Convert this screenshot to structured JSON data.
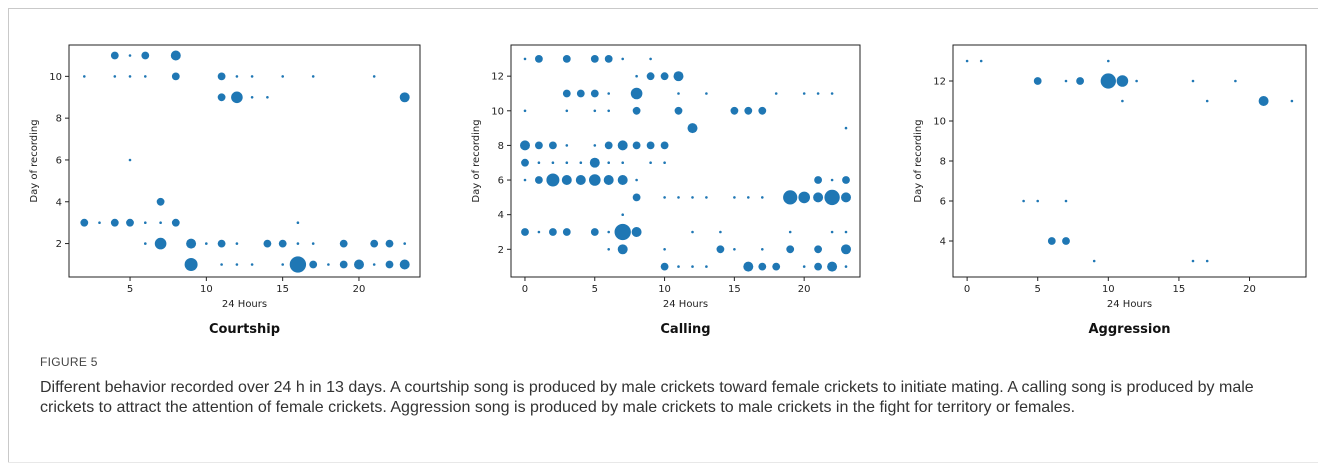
{
  "figure": {
    "label": "FIGURE 5",
    "caption": "Different behavior recorded over 24 h in 13 days. A courtship song is produced by male crickets toward female crickets to initiate mating. A calling song is produced by male crickets to attract the attention of female crickets. Aggression song is produced by male crickets to male crickets in the fight for territory or females."
  },
  "colors": {
    "marker": "#1f77b4",
    "axis": "#222222"
  },
  "chart_data": [
    {
      "type": "scatter",
      "title": "Courtship",
      "xlabel": "24 Hours",
      "ylabel": "Day of recording",
      "xlim": [
        1,
        24
      ],
      "ylim": [
        0.4,
        11.5
      ],
      "xticks": [
        5,
        10,
        15,
        20
      ],
      "yticks": [
        2,
        4,
        6,
        8,
        10
      ],
      "size_note": "marker size proportional to song count",
      "points": [
        [
          2,
          10,
          1
        ],
        [
          5,
          10,
          1
        ],
        [
          4,
          10,
          1
        ],
        [
          6,
          10,
          1
        ],
        [
          8,
          10,
          2
        ],
        [
          11,
          10,
          2
        ],
        [
          12,
          10,
          1
        ],
        [
          13,
          10,
          1
        ],
        [
          15,
          10,
          1
        ],
        [
          17,
          10,
          1
        ],
        [
          21,
          10,
          1
        ],
        [
          4,
          11,
          2
        ],
        [
          5,
          11,
          1
        ],
        [
          6,
          11,
          2
        ],
        [
          8,
          11,
          3
        ],
        [
          11,
          9,
          2
        ],
        [
          12,
          9,
          4
        ],
        [
          13,
          9,
          1
        ],
        [
          14,
          9,
          1
        ],
        [
          23,
          9,
          3
        ],
        [
          5,
          6,
          1
        ],
        [
          7,
          4,
          2
        ],
        [
          16,
          3,
          1
        ],
        [
          2,
          3,
          2
        ],
        [
          3,
          3,
          1
        ],
        [
          4,
          3,
          2
        ],
        [
          5,
          3,
          2
        ],
        [
          6,
          3,
          1
        ],
        [
          7,
          3,
          1
        ],
        [
          8,
          3,
          2
        ],
        [
          6,
          2,
          1
        ],
        [
          7,
          2,
          4
        ],
        [
          9,
          2,
          3
        ],
        [
          10,
          2,
          1
        ],
        [
          11,
          2,
          2
        ],
        [
          12,
          2,
          1
        ],
        [
          14,
          2,
          2
        ],
        [
          15,
          2,
          2
        ],
        [
          16,
          2,
          1
        ],
        [
          17,
          2,
          1
        ],
        [
          19,
          2,
          2
        ],
        [
          21,
          2,
          2
        ],
        [
          22,
          2,
          2
        ],
        [
          23,
          2,
          1
        ],
        [
          9,
          1,
          5
        ],
        [
          11,
          1,
          1
        ],
        [
          12,
          1,
          1
        ],
        [
          13,
          1,
          1
        ],
        [
          15,
          1,
          1
        ],
        [
          16,
          1,
          8
        ],
        [
          17,
          1,
          2
        ],
        [
          18,
          1,
          1
        ],
        [
          19,
          1,
          2
        ],
        [
          20,
          1,
          3
        ],
        [
          21,
          1,
          1
        ],
        [
          22,
          1,
          2
        ],
        [
          23,
          1,
          3
        ]
      ]
    },
    {
      "type": "scatter",
      "title": "Calling",
      "xlabel": "24 Hours",
      "ylabel": "Day of recording",
      "xlim": [
        -1,
        24
      ],
      "ylim": [
        0.4,
        13.8
      ],
      "xticks": [
        0,
        5,
        10,
        15,
        20
      ],
      "yticks": [
        2,
        4,
        6,
        8,
        10,
        12
      ],
      "size_note": "marker size proportional to song count",
      "points": [
        [
          0,
          13,
          1
        ],
        [
          1,
          13,
          2
        ],
        [
          3,
          13,
          2
        ],
        [
          5,
          13,
          2
        ],
        [
          6,
          13,
          2
        ],
        [
          7,
          13,
          1
        ],
        [
          9,
          13,
          1
        ],
        [
          8,
          12,
          1
        ],
        [
          9,
          12,
          2
        ],
        [
          10,
          12,
          2
        ],
        [
          11,
          12,
          3
        ],
        [
          3,
          11,
          2
        ],
        [
          4,
          11,
          2
        ],
        [
          5,
          11,
          2
        ],
        [
          6,
          11,
          1
        ],
        [
          8,
          11,
          4
        ],
        [
          11,
          11,
          1
        ],
        [
          13,
          11,
          1
        ],
        [
          18,
          11,
          1
        ],
        [
          20,
          11,
          1
        ],
        [
          21,
          11,
          1
        ],
        [
          22,
          11,
          1
        ],
        [
          0,
          10,
          1
        ],
        [
          3,
          10,
          1
        ],
        [
          5,
          10,
          1
        ],
        [
          6,
          10,
          1
        ],
        [
          8,
          10,
          2
        ],
        [
          11,
          10,
          2
        ],
        [
          15,
          10,
          2
        ],
        [
          16,
          10,
          2
        ],
        [
          17,
          10,
          2
        ],
        [
          12,
          9,
          3
        ],
        [
          23,
          9,
          1
        ],
        [
          0,
          8,
          3
        ],
        [
          1,
          8,
          2
        ],
        [
          2,
          8,
          2
        ],
        [
          3,
          8,
          1
        ],
        [
          5,
          8,
          1
        ],
        [
          6,
          8,
          2
        ],
        [
          7,
          8,
          3
        ],
        [
          8,
          8,
          2
        ],
        [
          9,
          8,
          2
        ],
        [
          10,
          8,
          2
        ],
        [
          0,
          7,
          2
        ],
        [
          1,
          7,
          1
        ],
        [
          2,
          7,
          1
        ],
        [
          3,
          7,
          1
        ],
        [
          4,
          7,
          1
        ],
        [
          5,
          7,
          3
        ],
        [
          6,
          7,
          1
        ],
        [
          7,
          7,
          1
        ],
        [
          9,
          7,
          1
        ],
        [
          10,
          7,
          1
        ],
        [
          0,
          6,
          1
        ],
        [
          1,
          6,
          2
        ],
        [
          2,
          6,
          5
        ],
        [
          3,
          6,
          3
        ],
        [
          4,
          6,
          3
        ],
        [
          5,
          6,
          4
        ],
        [
          6,
          6,
          3
        ],
        [
          7,
          6,
          3
        ],
        [
          8,
          6,
          1
        ],
        [
          21,
          6,
          2
        ],
        [
          22,
          6,
          1
        ],
        [
          23,
          6,
          2
        ],
        [
          8,
          5,
          2
        ],
        [
          10,
          5,
          1
        ],
        [
          11,
          5,
          1
        ],
        [
          12,
          5,
          1
        ],
        [
          13,
          5,
          1
        ],
        [
          15,
          5,
          1
        ],
        [
          16,
          5,
          1
        ],
        [
          17,
          5,
          1
        ],
        [
          19,
          5,
          6
        ],
        [
          20,
          5,
          4
        ],
        [
          21,
          5,
          3
        ],
        [
          22,
          5,
          7
        ],
        [
          23,
          5,
          3
        ],
        [
          7,
          4,
          1
        ],
        [
          0,
          3,
          2
        ],
        [
          1,
          3,
          1
        ],
        [
          2,
          3,
          2
        ],
        [
          3,
          3,
          2
        ],
        [
          5,
          3,
          2
        ],
        [
          6,
          3,
          1
        ],
        [
          7,
          3,
          8
        ],
        [
          8,
          3,
          3
        ],
        [
          12,
          3,
          1
        ],
        [
          14,
          3,
          1
        ],
        [
          19,
          3,
          1
        ],
        [
          22,
          3,
          1
        ],
        [
          23,
          3,
          1
        ],
        [
          6,
          2,
          1
        ],
        [
          7,
          2,
          3
        ],
        [
          10,
          2,
          1
        ],
        [
          14,
          2,
          2
        ],
        [
          15,
          2,
          1
        ],
        [
          17,
          2,
          1
        ],
        [
          19,
          2,
          2
        ],
        [
          21,
          2,
          2
        ],
        [
          23,
          2,
          3
        ],
        [
          10,
          1,
          2
        ],
        [
          11,
          1,
          1
        ],
        [
          12,
          1,
          1
        ],
        [
          13,
          1,
          1
        ],
        [
          16,
          1,
          3
        ],
        [
          17,
          1,
          2
        ],
        [
          18,
          1,
          2
        ],
        [
          20,
          1,
          1
        ],
        [
          21,
          1,
          2
        ],
        [
          22,
          1,
          3
        ],
        [
          23,
          1,
          1
        ]
      ]
    },
    {
      "type": "scatter",
      "title": "Aggression",
      "xlabel": "24 Hours",
      "ylabel": "Day of recording",
      "xlim": [
        -1,
        24
      ],
      "ylim": [
        2.2,
        13.8
      ],
      "xticks": [
        0,
        5,
        10,
        15,
        20
      ],
      "yticks": [
        4,
        6,
        8,
        10,
        12
      ],
      "size_note": "marker size proportional to song count",
      "points": [
        [
          0,
          13,
          1
        ],
        [
          1,
          13,
          1
        ],
        [
          10,
          13,
          1
        ],
        [
          5,
          12,
          2
        ],
        [
          7,
          12,
          1
        ],
        [
          8,
          12,
          2
        ],
        [
          10,
          12,
          7
        ],
        [
          11,
          12,
          4
        ],
        [
          12,
          12,
          1
        ],
        [
          16,
          12,
          1
        ],
        [
          19,
          12,
          1
        ],
        [
          11,
          11,
          1
        ],
        [
          17,
          11,
          1
        ],
        [
          21,
          11,
          3
        ],
        [
          23,
          11,
          1
        ],
        [
          4,
          6,
          1
        ],
        [
          5,
          6,
          1
        ],
        [
          7,
          6,
          1
        ],
        [
          6,
          4,
          2
        ],
        [
          7,
          4,
          2
        ],
        [
          9,
          3,
          1
        ],
        [
          16,
          3,
          1
        ],
        [
          17,
          3,
          1
        ]
      ]
    }
  ]
}
